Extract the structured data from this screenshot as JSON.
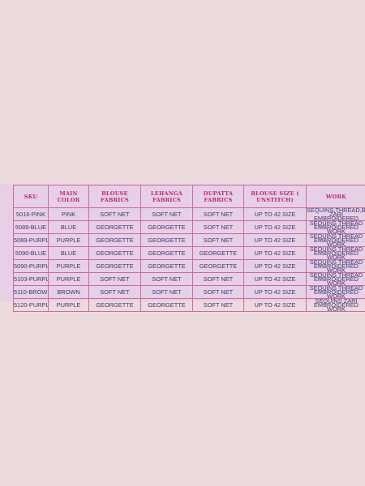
{
  "table": {
    "headers": [
      "SKU",
      "MAIN COLOR",
      "BLOUSE FABRICS",
      "LEHANGA FABRICS",
      "DUPATTA FABRICS",
      "BLOUSE SIZE ( UNSTITCH)",
      "WORK"
    ],
    "rows": [
      [
        "5016-PINK",
        "PINK",
        "SOFT NET",
        "SOFT NET",
        "SOFT NET",
        "UP TO 42 SIZE",
        "SEQUINS,THREAD,BADLA ZARI EMBROIDERED"
      ],
      [
        "5089-BLUE",
        "BLUE",
        "GEORGETTE",
        "GEORGETTE",
        "SOFT NET",
        "UP TO 42 SIZE",
        "SEQUINS THREAD EMBROIDERED WORK"
      ],
      [
        "5089-PURPLE",
        "PURPLE",
        "GEORGETTE",
        "GEORGETTE",
        "SOFT NET",
        "UP TO 42 SIZE",
        "SEQUINS THREAD EMBROIDERED WORK"
      ],
      [
        "5090-BLUE",
        "BLUE",
        "GEORGETTE",
        "GEORGETTE",
        "GEORGETTE",
        "UP TO 42 SIZE",
        "SEQUINS THREAD EMBROIDERED WORK"
      ],
      [
        "5090-PURPLE",
        "PURPLE",
        "GEORGETTE",
        "GEORGETTE",
        "GEORGETTE",
        "UP TO 42 SIZE",
        "SEQUINS THREAD EMBROIDERED WORK"
      ],
      [
        "5103-PURPLE",
        "PURPLE",
        "SOFT NET",
        "SOFT NET",
        "SOFT NET",
        "UP TO 42 SIZE",
        "SEQUINS THREAD EMBROIDERED WORK"
      ],
      [
        "5110-BROWN",
        "BROWN",
        "SOFT NET",
        "SOFT NET",
        "SOFT NET",
        "UP TO 42 SIZE",
        "SEQUINS THREAD EMBROIDERED WORK"
      ],
      [
        "5120-PURPLE",
        "PURPLE",
        "GEORGETTE",
        "GEORGETTE",
        "SOFT NET",
        "UP TO 42 SIZE",
        "SEQUINS ZARI EMBROIDERED WORK"
      ]
    ]
  },
  "colors": {
    "page_background": "#ecdadd",
    "table_background": "#e7cfe6",
    "header_text": "#b52a78",
    "cell_text": "#3d3a70",
    "grid_lines": "#c86aa5"
  }
}
